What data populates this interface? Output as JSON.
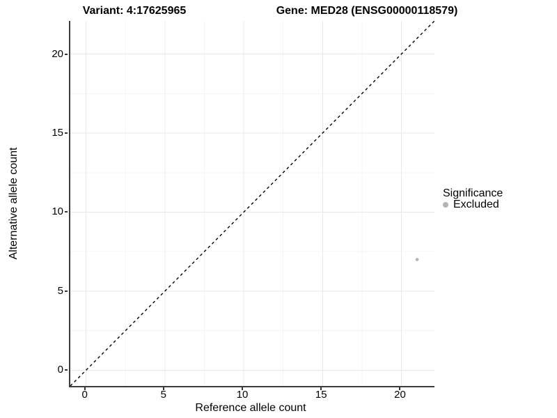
{
  "chart_data": {
    "type": "scatter",
    "titles": [
      "Variant: 4:17625965",
      "Gene: MED28 (ENSG00000118579)"
    ],
    "xlabel": "Reference allele count",
    "ylabel": "Alternative allele count",
    "xlim": [
      -1.0,
      22.1
    ],
    "ylim": [
      -1.0,
      22.1
    ],
    "x_ticks": [
      0,
      5,
      10,
      15,
      20
    ],
    "y_ticks": [
      0,
      5,
      10,
      15,
      20
    ],
    "x_minor_breaks": [
      2.5,
      7.5,
      12.5,
      17.5
    ],
    "y_minor_breaks": [
      2.5,
      7.5,
      12.5,
      17.5
    ],
    "grid": "major+minor",
    "identity_line": {
      "style": "dashed",
      "from": [
        -1.0,
        -1.0
      ],
      "to": [
        22.1,
        22.1
      ],
      "color": "#000000"
    },
    "series": [
      {
        "name": "Excluded",
        "color": "#b4b4b4",
        "points": [
          {
            "x": 21,
            "y": 7
          }
        ]
      }
    ],
    "legend": {
      "title": "Significance",
      "position": "right",
      "entries": [
        {
          "label": "Excluded",
          "color": "#b4b4b4"
        }
      ]
    }
  },
  "colors": {
    "background": "#ffffff",
    "axis_line": "#3c3c3c",
    "tick_mark": "#333333",
    "grid_major": "#e8e8e8",
    "grid_minor": "#f4f4f4",
    "identity_line": "#000000",
    "point": "#b4b4b4",
    "text": "#000000"
  }
}
